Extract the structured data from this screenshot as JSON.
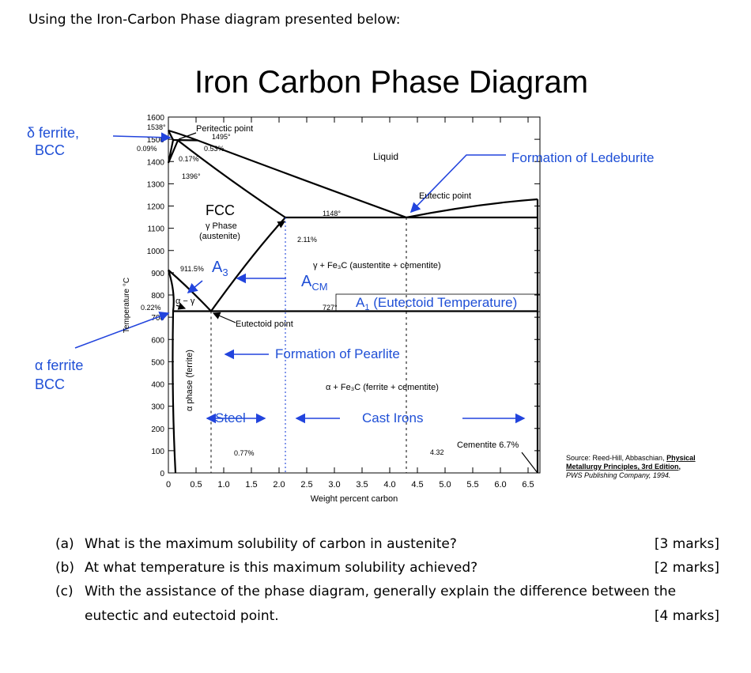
{
  "intro": "Using the Iron-Carbon Phase diagram presented below:",
  "diagram": {
    "title": "Iron Carbon Phase Diagram",
    "x_axis_label": "Weight percent carbon",
    "y_axis_label": "Temperature °C",
    "x_ticks": [
      "0",
      "0.5",
      "1.0",
      "1.5",
      "2.0",
      "2.5",
      "3.0",
      "3.5",
      "4.0",
      "4.5",
      "5.0",
      "5.5",
      "6.0",
      "6.5"
    ],
    "y_ticks": [
      "0",
      "100",
      "200",
      "300",
      "400",
      "500",
      "600",
      "700",
      "800",
      "900",
      "1000",
      "1100",
      "1200",
      "1300",
      "1400",
      "1500",
      "1600"
    ],
    "delta_ferrite": [
      "δ ferrite,",
      "BCC"
    ],
    "alpha_ferrite": [
      "α ferrite",
      "BCC"
    ],
    "annotations": {
      "peritectic": "Peritectic point",
      "t1495": "1495°",
      "t1538": "1538°",
      "c009": "0.09%",
      "c017": "0.17%",
      "c053": "0.53%",
      "t1396": "1396°",
      "liquid": "Liquid",
      "ledeburite": "Formation of Ledeburite",
      "eutectic": "Eutectic point",
      "t1148": "1148°",
      "fcc": "FCC",
      "gamma_phase": "γ Phase",
      "austenite": "(austenite)",
      "c211": "2.11%",
      "t9115": "911.5%",
      "gamma_fe3c": "γ + Fe₃C (austentite + cementite)",
      "t727": "727°",
      "c022": "0.22%",
      "alpha_gamma": "α − γ",
      "eutectoid": "Eutectoid point",
      "pearlite": "Formation of Pearlite",
      "alpha_fe3c": "α + Fe₃C (ferrite + cementite)",
      "alpha_phase": "α phase (ferrite)",
      "steel": "Steel",
      "cast_irons": "Cast Irons",
      "cementite": "Cementite 6.7%",
      "c432": "4.32",
      "c077": "0.77%"
    },
    "a3": {
      "main": "A",
      "sub": "3"
    },
    "acm": {
      "main": "A",
      "sub": "CM"
    },
    "a1": {
      "main": "A",
      "sub": "1",
      "rest": " (Eutectoid Temperature)"
    },
    "source": {
      "prefix": "Source: Reed-Hill, Abbaschian, ",
      "book1": "Physical",
      "book2": "Metallurgy Principles, 3rd Edition",
      "comma": ",",
      "publisher": "PWS Publishing Company, 1994."
    }
  },
  "questions": [
    {
      "label": "(a)",
      "text": "What is the maximum solubility of carbon in austenite?",
      "marks": "[3 marks]"
    },
    {
      "label": "(b)",
      "text": "At what temperature is this maximum solubility achieved?",
      "marks": "[2 marks]"
    },
    {
      "label": "(c)",
      "text": "With the assistance of the phase diagram, generally explain the difference between the",
      "continuation": "eutectic and eutectoid point.",
      "marks": "[4 marks]"
    }
  ]
}
